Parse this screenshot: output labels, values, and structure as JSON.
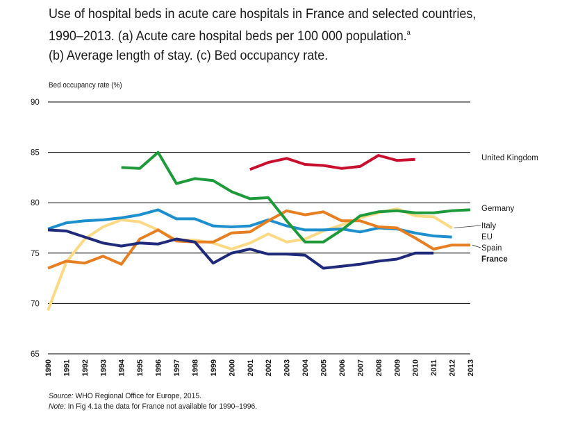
{
  "title": {
    "line1": "Use of hospital beds in acute care hospitals in France and selected countries,",
    "line2": "1990–2013. (a) Acute care hospital beds per 100 000 population.",
    "line2_sup": "a",
    "line3": "(b) Average length of stay. (c) Bed occupancy rate."
  },
  "source": {
    "source_label": "Source:",
    "source_text": " WHO Regional Office for Europe, 2015.",
    "note_label": "Note:",
    "note_text": " In Fig 4.1a the data for France not available for 1990–1996."
  },
  "chart_data": {
    "type": "line",
    "title": "",
    "ylabel": "Bed occupancy rate (%)",
    "xlabel": "",
    "ylim": [
      65,
      90
    ],
    "yticks": [
      65,
      70,
      75,
      80,
      85,
      90
    ],
    "grid": true,
    "legend": "labels at right end of lines",
    "categories": [
      "1990",
      "1991",
      "1992",
      "1993",
      "1994",
      "1995",
      "1996",
      "1997",
      "1998",
      "1999",
      "2000",
      "2001",
      "2002",
      "2003",
      "2004",
      "2005",
      "2006",
      "2007",
      "2008",
      "2009",
      "2010",
      "2011",
      "2012",
      "2013"
    ],
    "series": [
      {
        "name": "United Kingdom",
        "color": "#c8102e",
        "values": [
          null,
          null,
          null,
          null,
          null,
          null,
          null,
          null,
          null,
          null,
          null,
          83.3,
          84.0,
          84.4,
          83.8,
          83.7,
          83.4,
          83.6,
          84.7,
          84.2,
          84.3,
          null,
          null,
          null
        ]
      },
      {
        "name": "Germany",
        "color": "#1e9a3a",
        "values": [
          null,
          null,
          null,
          null,
          83.5,
          83.4,
          85.0,
          81.9,
          82.4,
          82.2,
          81.1,
          80.4,
          80.5,
          78.2,
          76.1,
          76.1,
          77.3,
          78.7,
          79.1,
          79.2,
          79.0,
          79.0,
          79.2,
          79.3
        ]
      },
      {
        "name": "Italy",
        "color": "#fbd985",
        "values": [
          69.3,
          74.1,
          76.4,
          77.6,
          78.3,
          78.1,
          77.3,
          76.3,
          76.3,
          76.0,
          75.4,
          76.0,
          76.9,
          76.1,
          76.4,
          77.2,
          77.8,
          78.5,
          79.0,
          79.4,
          78.7,
          78.6,
          77.5,
          null
        ]
      },
      {
        "name": "EU",
        "color": "#1d8fcd",
        "values": [
          77.4,
          78.0,
          78.2,
          78.3,
          78.5,
          78.8,
          79.3,
          78.4,
          78.4,
          77.7,
          77.6,
          77.7,
          78.3,
          77.7,
          77.3,
          77.3,
          77.4,
          77.1,
          77.5,
          77.4,
          77.0,
          76.7,
          76.6,
          null
        ]
      },
      {
        "name": "Spain",
        "color": "#e67e22",
        "values": [
          73.5,
          74.2,
          74.0,
          74.7,
          73.9,
          76.4,
          77.3,
          76.2,
          76.1,
          76.1,
          77.0,
          77.1,
          78.2,
          79.2,
          78.8,
          79.1,
          78.2,
          78.2,
          77.6,
          77.5,
          76.5,
          75.4,
          75.8,
          75.8
        ]
      },
      {
        "name": "France",
        "color": "#1f2a7a",
        "values": [
          77.3,
          77.2,
          76.6,
          76.0,
          75.7,
          76.0,
          75.9,
          76.4,
          76.1,
          74.0,
          75.0,
          75.4,
          74.9,
          74.9,
          74.8,
          73.5,
          73.7,
          73.9,
          74.2,
          74.4,
          75.0,
          75.0,
          null,
          null
        ]
      }
    ]
  }
}
